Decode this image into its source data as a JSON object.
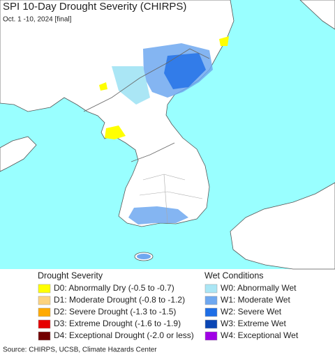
{
  "title": "SPI 10-Day Drought Severity (CHIRPS)",
  "subtitle": "Oct. 1 -10, 2024 [final]",
  "legend": {
    "drought": {
      "title": "Drought Severity",
      "items": [
        {
          "label": "D0: Abnormally Dry (-0.5 to -0.7)",
          "color": "#ffff00"
        },
        {
          "label": "D1: Moderate Drought (-0.8 to -1.2)",
          "color": "#fcd37f"
        },
        {
          "label": "D2: Severe Drought (-1.3 to -1.5)",
          "color": "#ffaa00"
        },
        {
          "label": "D3: Extreme Drought (-1.6 to -1.9)",
          "color": "#e60000"
        },
        {
          "label": "D4: Exceptional Drought (-2.0 or less)",
          "color": "#730000"
        }
      ]
    },
    "wet": {
      "title": "Wet Conditions",
      "items": [
        {
          "label": "W0: Abnormally Wet",
          "color": "#aae6f5"
        },
        {
          "label": "W1: Moderate Wet",
          "color": "#6fa8f0"
        },
        {
          "label": "W2: Severe Wet",
          "color": "#1e6ee6"
        },
        {
          "label": "W3: Extreme Wet",
          "color": "#0a46b4"
        },
        {
          "label": "W4: Exceptional Wet",
          "color": "#a000e6"
        }
      ]
    }
  },
  "source": "Source: CHIRPS, UCSB, Climate Hazards Center"
}
